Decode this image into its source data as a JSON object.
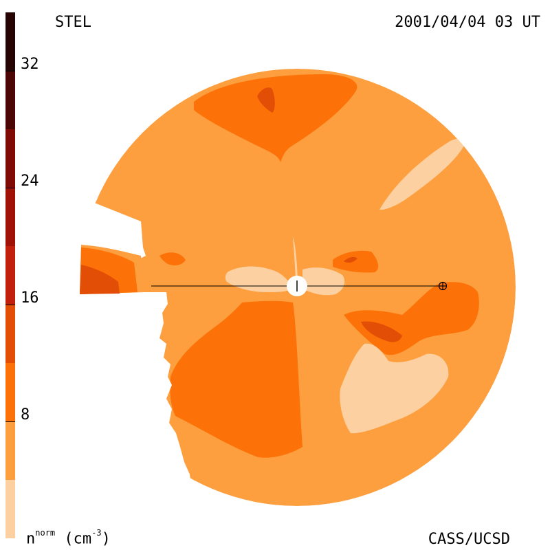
{
  "header": {
    "instrument": "STEL",
    "datetime": "2001/04/04 03 UT"
  },
  "footer": {
    "credit": "CASS/UCSD",
    "unit_base": "n",
    "unit_sup": "norm",
    "unit_rest": " (cm",
    "unit_exp": "-3",
    "unit_close": ")"
  },
  "chart_data": {
    "type": "heatmap",
    "title": "STEL",
    "timestamp": "2001/04/04 03 UT",
    "colorbar": {
      "label": "n^norm (cm^-3)",
      "min": 0,
      "max": 36,
      "ticks": [
        8,
        16,
        24,
        32
      ],
      "tick_labels": [
        "8",
        "16",
        "24",
        "32"
      ],
      "levels": [
        {
          "from": 0,
          "to": 4,
          "color": "#fdd0a2"
        },
        {
          "from": 4,
          "to": 8,
          "color": "#fd9f3e"
        },
        {
          "from": 8,
          "to": 12,
          "color": "#fd7208"
        },
        {
          "from": 12,
          "to": 16,
          "color": "#e24e06"
        },
        {
          "from": 16,
          "to": 20,
          "color": "#c21f0c"
        },
        {
          "from": 20,
          "to": 24,
          "color": "#a01106"
        },
        {
          "from": 24,
          "to": 28,
          "color": "#800a04"
        },
        {
          "from": 28,
          "to": 32,
          "color": "#4d0606"
        },
        {
          "from": 32,
          "to": 36,
          "color": "#260404"
        }
      ]
    },
    "background_level_color": "#fd9f3e",
    "regions": [
      {
        "level": 3,
        "description": "upper lobe"
      },
      {
        "level": 4,
        "description": "upper lobe core"
      },
      {
        "level": 1,
        "description": "upper-right light streak"
      },
      {
        "level": 3,
        "description": "left wedge"
      },
      {
        "level": 4,
        "description": "left wedge core"
      },
      {
        "level": 3,
        "description": "lower-left large lobe"
      },
      {
        "level": 3,
        "description": "right lobe"
      },
      {
        "level": 4,
        "description": "right lobe core"
      },
      {
        "level": 1,
        "description": "lower-right light region"
      },
      {
        "level": 1,
        "description": "central light cross"
      },
      {
        "level": 3,
        "description": "small spot near sun"
      },
      {
        "level": 4,
        "description": "small spot core"
      }
    ],
    "markers": [
      {
        "name": "sun",
        "symbol": "+"
      },
      {
        "name": "earth",
        "symbol": "⊕"
      }
    ]
  },
  "colors": {
    "accent": "#fd9f3e",
    "light": "#fdd0a2",
    "mid": "#fd7208",
    "dark": "#e24e06"
  }
}
